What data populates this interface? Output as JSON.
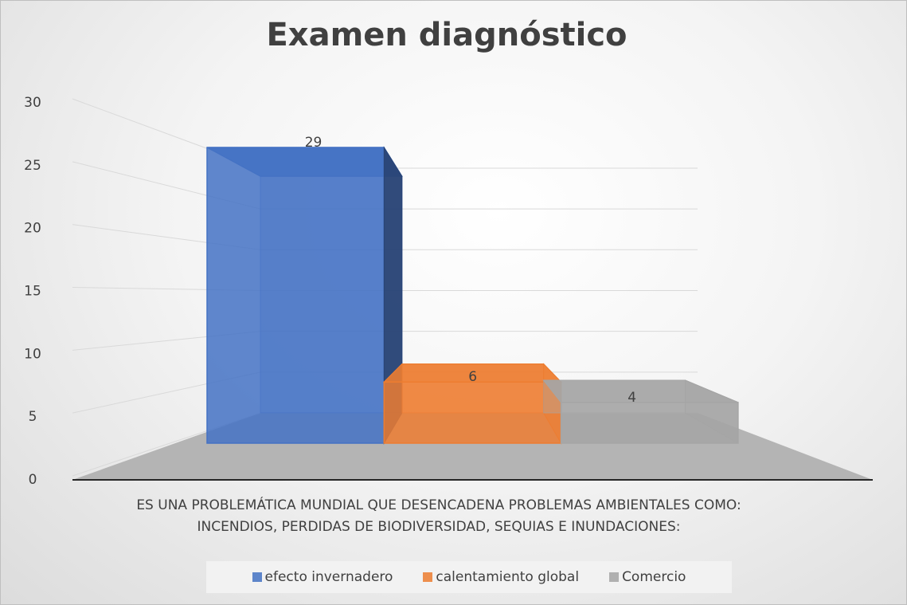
{
  "chart_data": {
    "type": "bar3d",
    "title": "Examen diagnóstico",
    "categories": [
      "ES UNA PROBLEMÁTICA MUNDIAL QUE DESENCADENA PROBLEMAS AMBIENTALES COMO: INCENDIOS, PERDIDAS DE BIODIVERSIDAD, SEQUIAS E INUNDACIONES:"
    ],
    "series": [
      {
        "name": "efecto invernadero",
        "color": "#4472c4",
        "values": [
          29
        ]
      },
      {
        "name": "calentamiento global",
        "color": "#ed7d31",
        "values": [
          6
        ]
      },
      {
        "name": "Comercio",
        "color": "#a5a5a5",
        "values": [
          4
        ]
      }
    ],
    "ylim": [
      0,
      30
    ],
    "yticks": [
      0,
      5,
      10,
      15,
      20,
      25,
      30
    ],
    "grid": true,
    "legend": "bottom"
  }
}
